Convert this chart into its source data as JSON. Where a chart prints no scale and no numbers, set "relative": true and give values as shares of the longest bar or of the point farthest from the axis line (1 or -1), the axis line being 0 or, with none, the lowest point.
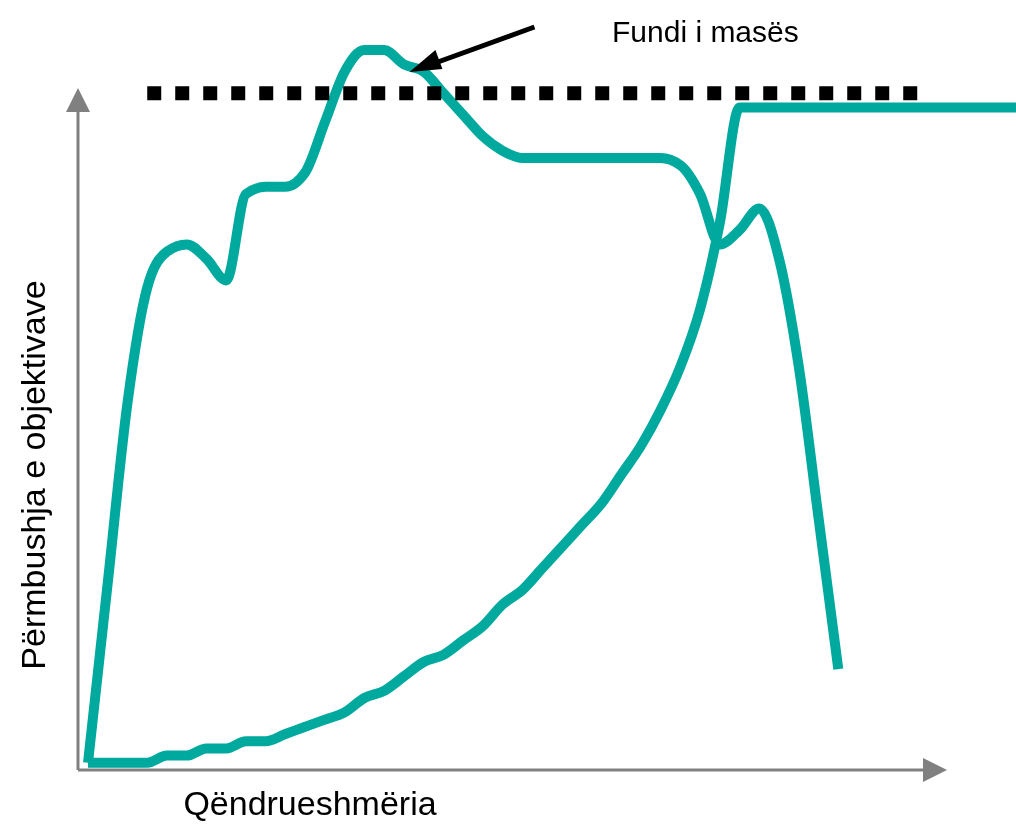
{
  "chart_data": {
    "type": "line",
    "relative": true,
    "xlabel": "Qëndrueshmëria",
    "ylabel": "Përmbushja e objektivave",
    "categories": [
      null,
      null,
      null,
      null,
      null,
      null,
      null,
      null,
      null,
      null,
      null,
      null,
      null,
      null,
      null,
      null,
      null,
      null,
      null,
      null,
      null,
      null,
      null,
      null,
      null,
      null,
      null,
      null,
      null,
      null,
      null,
      null,
      null,
      null,
      null,
      null,
      null,
      null,
      null,
      null,
      null,
      null,
      null,
      null,
      null,
      null,
      null,
      null
    ],
    "series": [
      {
        "color": "#00a99d",
        "line_style": "solid",
        "values": [
          0.01,
          0.26,
          0.51,
          0.67,
          0.72,
          0.73,
          0.71,
          0.68,
          0.8,
          0.81,
          0.81,
          0.83,
          0.9,
          0.97,
          1,
          1,
          0.98,
          0.97,
          0.94,
          0.91,
          0.88,
          0.86,
          0.85,
          0.85,
          0.85,
          0.85,
          0.85,
          0.85,
          0.85,
          0.85,
          0.84,
          0.8,
          0.73,
          0.75,
          0.78,
          0.71,
          0.56,
          0.35,
          0.14,
          null,
          null,
          null,
          null,
          null,
          null,
          null,
          null,
          null
        ]
      },
      {
        "color": "#00a99d",
        "line_style": "solid",
        "values": [
          0.01,
          0.01,
          0.01,
          0.01,
          0.02,
          0.02,
          0.03,
          0.03,
          0.04,
          0.04,
          0.05,
          0.06,
          0.07,
          0.08,
          0.1,
          0.11,
          0.13,
          0.15,
          0.16,
          0.18,
          0.2,
          0.23,
          0.25,
          0.28,
          0.31,
          0.34,
          0.37,
          0.41,
          0.45,
          0.5,
          0.56,
          0.64,
          0.76,
          0.92,
          0.92,
          0.92,
          0.92,
          0.92,
          0.92,
          0.92,
          0.92,
          0.92,
          0.92,
          0.92,
          0.92,
          0.92,
          0.92,
          0.92
        ]
      },
      {
        "color": "#000000",
        "line_style": "dotted",
        "values": [
          null,
          null,
          null,
          0.94,
          0.94,
          0.94,
          0.94,
          0.94,
          0.94,
          0.94,
          0.94,
          0.94,
          0.94,
          0.94,
          0.94,
          0.94,
          0.94,
          0.94,
          0.94,
          0.94,
          0.94,
          0.94,
          0.94,
          0.94,
          0.94,
          0.94,
          0.94,
          0.94,
          0.94,
          0.94,
          0.94,
          0.94,
          0.94,
          0.94,
          0.94,
          0.94,
          0.94,
          0.94,
          0.94,
          0.94,
          0.94,
          0.94,
          0.94,
          null,
          null,
          null,
          null,
          null
        ]
      }
    ],
    "annotations": [
      "Fundi i masës"
    ]
  }
}
